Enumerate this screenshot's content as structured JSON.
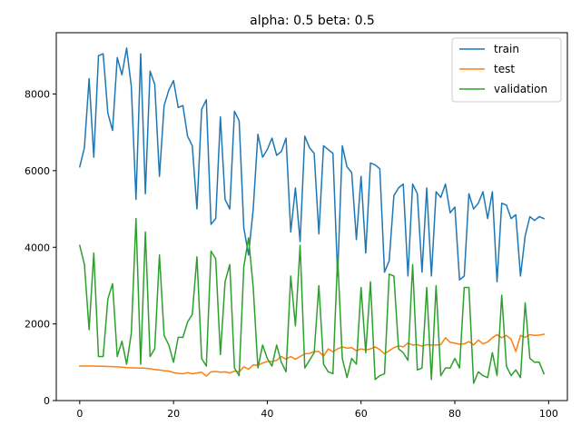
{
  "chart_data": {
    "type": "line",
    "title": "alpha: 0.5 beta: 0.5",
    "xlabel": "",
    "ylabel": "",
    "xlim": [
      -5,
      104
    ],
    "ylim": [
      0,
      9600
    ],
    "x_ticks": [
      0,
      20,
      40,
      60,
      80,
      100
    ],
    "y_ticks": [
      0,
      2000,
      4000,
      6000,
      8000
    ],
    "x_tick_labels": [
      "0",
      "20",
      "40",
      "60",
      "80",
      "100"
    ],
    "y_tick_labels": [
      "0",
      "2000",
      "4000",
      "6000",
      "8000"
    ],
    "grid": false,
    "legend_position": "top-right",
    "x": [
      0,
      1,
      2,
      3,
      4,
      5,
      6,
      7,
      8,
      9,
      10,
      11,
      12,
      13,
      14,
      15,
      16,
      17,
      18,
      19,
      20,
      21,
      22,
      23,
      24,
      25,
      26,
      27,
      28,
      29,
      30,
      31,
      32,
      33,
      34,
      35,
      36,
      37,
      38,
      39,
      40,
      41,
      42,
      43,
      44,
      45,
      46,
      47,
      48,
      49,
      50,
      51,
      52,
      53,
      54,
      55,
      56,
      57,
      58,
      59,
      60,
      61,
      62,
      63,
      64,
      65,
      66,
      67,
      68,
      69,
      70,
      71,
      72,
      73,
      74,
      75,
      76,
      77,
      78,
      79,
      80,
      81,
      82,
      83,
      84,
      85,
      86,
      87,
      88,
      89,
      90,
      91,
      92,
      93,
      94,
      95,
      96,
      97,
      98,
      99
    ],
    "series": [
      {
        "name": "train",
        "color": "#1f77b4",
        "values": [
          6100,
          6600,
          8400,
          6350,
          9000,
          9050,
          7500,
          7050,
          8950,
          8500,
          9200,
          8200,
          5250,
          9050,
          5400,
          8600,
          8250,
          5850,
          7700,
          8100,
          8350,
          7650,
          7700,
          6900,
          6650,
          5000,
          7600,
          7850,
          4600,
          4750,
          7400,
          5250,
          5000,
          7550,
          7300,
          4500,
          3800,
          5000,
          6950,
          6350,
          6550,
          6850,
          6400,
          6500,
          6850,
          4400,
          5550,
          4150,
          6900,
          6600,
          6450,
          4350,
          6650,
          6550,
          6450,
          3250,
          6650,
          6100,
          5950,
          4200,
          5850,
          3850,
          6200,
          6150,
          6050,
          3350,
          3650,
          5350,
          5550,
          5650,
          3250,
          5650,
          5400,
          3350,
          5550,
          3250,
          5450,
          5300,
          5650,
          4900,
          5050,
          3150,
          3250,
          5400,
          5000,
          5150,
          5450,
          4750,
          5450,
          3100,
          5150,
          5100,
          4750,
          4850,
          3250,
          4300,
          4800,
          4700,
          4800,
          4750
        ]
      },
      {
        "name": "test",
        "color": "#ff7f0e",
        "values": [
          900,
          900,
          900,
          900,
          895,
          895,
          890,
          885,
          880,
          870,
          860,
          855,
          850,
          850,
          845,
          830,
          810,
          800,
          780,
          770,
          730,
          710,
          700,
          730,
          700,
          720,
          740,
          640,
          750,
          760,
          740,
          750,
          720,
          770,
          750,
          880,
          820,
          930,
          920,
          980,
          1020,
          1020,
          1050,
          1150,
          1080,
          1150,
          1080,
          1150,
          1220,
          1230,
          1280,
          1280,
          1160,
          1350,
          1270,
          1350,
          1400,
          1370,
          1380,
          1300,
          1350,
          1320,
          1350,
          1400,
          1330,
          1220,
          1300,
          1380,
          1430,
          1400,
          1500,
          1450,
          1460,
          1420,
          1460,
          1450,
          1450,
          1460,
          1640,
          1520,
          1500,
          1470,
          1480,
          1540,
          1450,
          1580,
          1480,
          1530,
          1640,
          1720,
          1640,
          1700,
          1600,
          1280,
          1700,
          1650,
          1720,
          1700,
          1710,
          1730
        ]
      },
      {
        "name": "validation",
        "color": "#2ca02c",
        "values": [
          4050,
          3550,
          1850,
          3850,
          1150,
          1150,
          2650,
          3050,
          1150,
          1550,
          950,
          1750,
          4750,
          950,
          4400,
          1150,
          1350,
          3800,
          1700,
          1450,
          1000,
          1650,
          1650,
          2050,
          2250,
          3750,
          1100,
          900,
          3900,
          3700,
          1200,
          3100,
          3550,
          850,
          650,
          3500,
          4250,
          2950,
          850,
          1450,
          1100,
          900,
          1450,
          1000,
          750,
          3250,
          1950,
          4050,
          850,
          1050,
          1250,
          3000,
          950,
          750,
          700,
          3750,
          1100,
          600,
          1100,
          950,
          2950,
          1250,
          3100,
          550,
          650,
          700,
          3300,
          3250,
          1350,
          1250,
          1050,
          3550,
          800,
          850,
          2950,
          550,
          3000,
          650,
          850,
          850,
          1100,
          850,
          2950,
          2950,
          450,
          750,
          650,
          600,
          1250,
          650,
          2750,
          900,
          650,
          800,
          600,
          2550,
          1100,
          1000,
          1000,
          700
        ]
      }
    ]
  }
}
